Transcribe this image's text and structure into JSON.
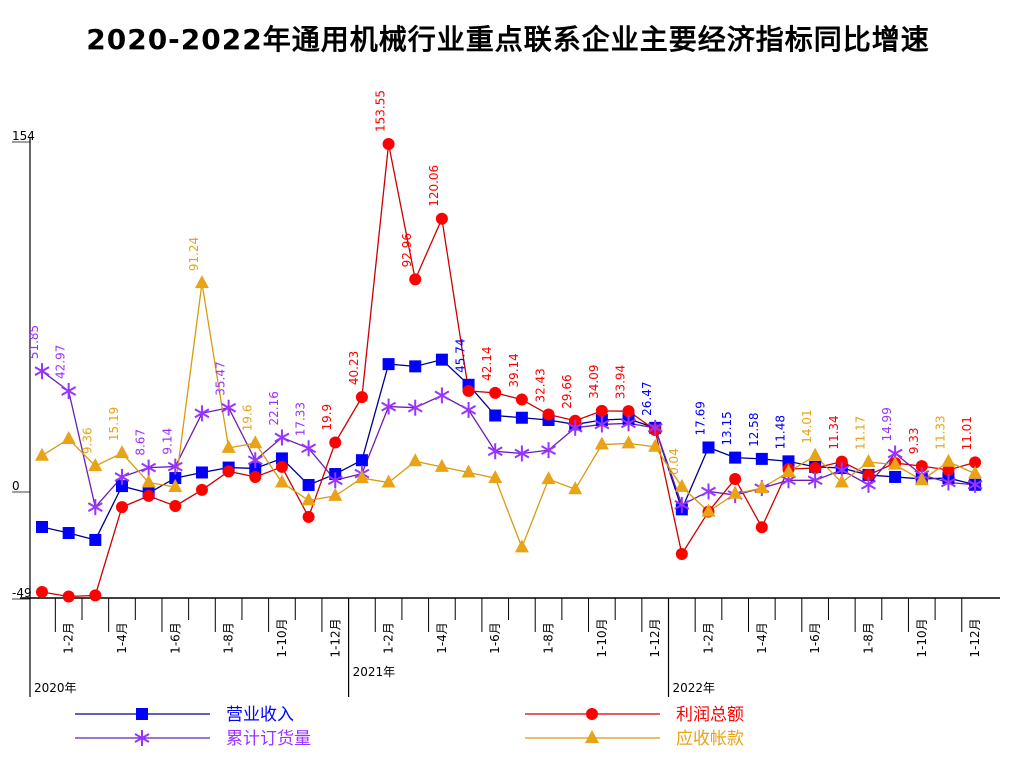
{
  "chart_data": {
    "type": "line",
    "title": "2020-2022年通用机械行业重点联系企业主要经济指标同比增速",
    "ylim": [
      -49,
      154
    ],
    "yticks": [
      "154",
      "0",
      "-49"
    ],
    "years": [
      "2020年",
      "2021年",
      "2022年"
    ],
    "categories": [
      "",
      "1-2月",
      "",
      "1-4月",
      "",
      "1-6月",
      "",
      "1-8月",
      "",
      "1-10月",
      "",
      "1-12月",
      "",
      "1-2月",
      "",
      "1-4月",
      "",
      "1-6月",
      "",
      "1-8月",
      "",
      "1-10月",
      "",
      "1-12月",
      "",
      "1-2月",
      "",
      "1-4月",
      "",
      "1-6月",
      "",
      "1-8月",
      "",
      "1-10月",
      "",
      "1-12月"
    ],
    "series": [
      {
        "name": "营业收入",
        "color": "#0000ff",
        "line": "#00008b",
        "marker": "square",
        "values": [
          -17.9,
          -20.6,
          -23.7,
          0.4,
          -2.7,
          4,
          6.5,
          8.7,
          8.3,
          12.8,
          0.9,
          5.8,
          12,
          55,
          54,
          57,
          45.74,
          32,
          31,
          30,
          28,
          30,
          30.5,
          26.47,
          -10,
          17.69,
          13.15,
          12.58,
          11.48,
          9,
          8.5,
          5.4,
          4.5,
          3.6,
          4,
          1
        ],
        "labeled": [
          16,
          23,
          25,
          26,
          27,
          28
        ]
      },
      {
        "name": "利润总额",
        "color": "#ff0000",
        "line": "#cc0000",
        "marker": "circle",
        "values": [
          -47,
          -49,
          -48.5,
          -9,
          -4,
          -8.5,
          -1.3,
          7,
          4.5,
          9,
          -13.4,
          19.9,
          40.23,
          153.55,
          92.96,
          120.06,
          43,
          42.14,
          39.14,
          32.43,
          29.66,
          34.09,
          33.94,
          25.5,
          -30,
          -11,
          3.6,
          -18,
          8,
          8.5,
          11.34,
          5.4,
          10.7,
          9.33,
          7.6,
          11.01
        ],
        "labeled": [
          11,
          12,
          13,
          14,
          15,
          17,
          18,
          19,
          20,
          21,
          22,
          30,
          33,
          35
        ]
      },
      {
        "name": "累计订货量",
        "color": "#9933ff",
        "line": "#6a1fb0",
        "marker": "asterisk",
        "values": [
          51.85,
          42.97,
          -9,
          4.5,
          8.67,
          9.14,
          33,
          35.47,
          12,
          22.16,
          17.33,
          3,
          6,
          36,
          35.5,
          41,
          34.5,
          16,
          15,
          16.5,
          26.5,
          28,
          28.5,
          26.5,
          -8,
          -2,
          -3.6,
          -0.5,
          3,
          3,
          7.6,
          1,
          14.99,
          5.4,
          2,
          1
        ],
        "labeled": [
          0,
          1,
          4,
          5,
          7,
          9,
          10,
          32
        ]
      },
      {
        "name": "应收帐款",
        "color": "#e8a317",
        "line": "#d99a10",
        "marker": "triangle",
        "values": [
          14,
          21.5,
          9.36,
          15.19,
          2,
          0,
          91.24,
          17.5,
          19.6,
          2,
          -6,
          -4,
          4,
          2,
          11.5,
          9,
          6.5,
          4,
          -27,
          3.5,
          -1,
          19,
          19.5,
          18,
          0.04,
          -11,
          -3,
          -0.5,
          6.7,
          14.01,
          2,
          11.17,
          10,
          3,
          11.33,
          6
        ],
        "labeled": [
          2,
          3,
          6,
          8,
          24,
          29,
          31,
          34
        ]
      }
    ],
    "legend": "bottom"
  }
}
